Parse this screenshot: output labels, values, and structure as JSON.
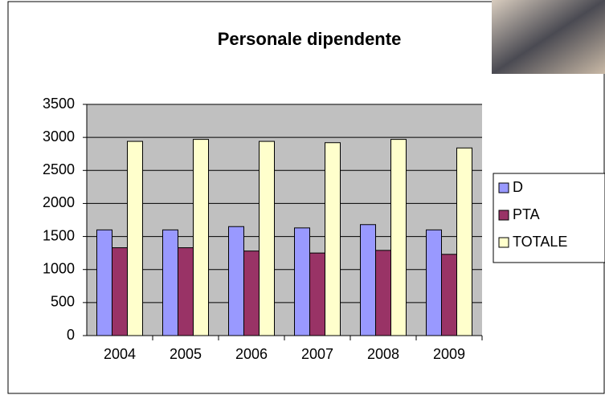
{
  "chart_data": {
    "type": "bar",
    "title": "Personale dipendente",
    "categories": [
      "2004",
      "2005",
      "2006",
      "2007",
      "2008",
      "2009"
    ],
    "series": [
      {
        "name": "D",
        "color": "#9999ff",
        "values": [
          1600,
          1600,
          1650,
          1630,
          1680,
          1600
        ]
      },
      {
        "name": "PTA",
        "color": "#993366",
        "values": [
          1330,
          1330,
          1280,
          1250,
          1290,
          1230
        ]
      },
      {
        "name": "TOTALE",
        "color": "#ffffcc",
        "values": [
          2940,
          2970,
          2940,
          2920,
          2970,
          2840
        ]
      }
    ],
    "ylim": [
      0,
      3500
    ],
    "yticks": [
      0,
      500,
      1000,
      1500,
      2000,
      2500,
      3000,
      3500
    ],
    "grid": true,
    "legend": "right"
  }
}
